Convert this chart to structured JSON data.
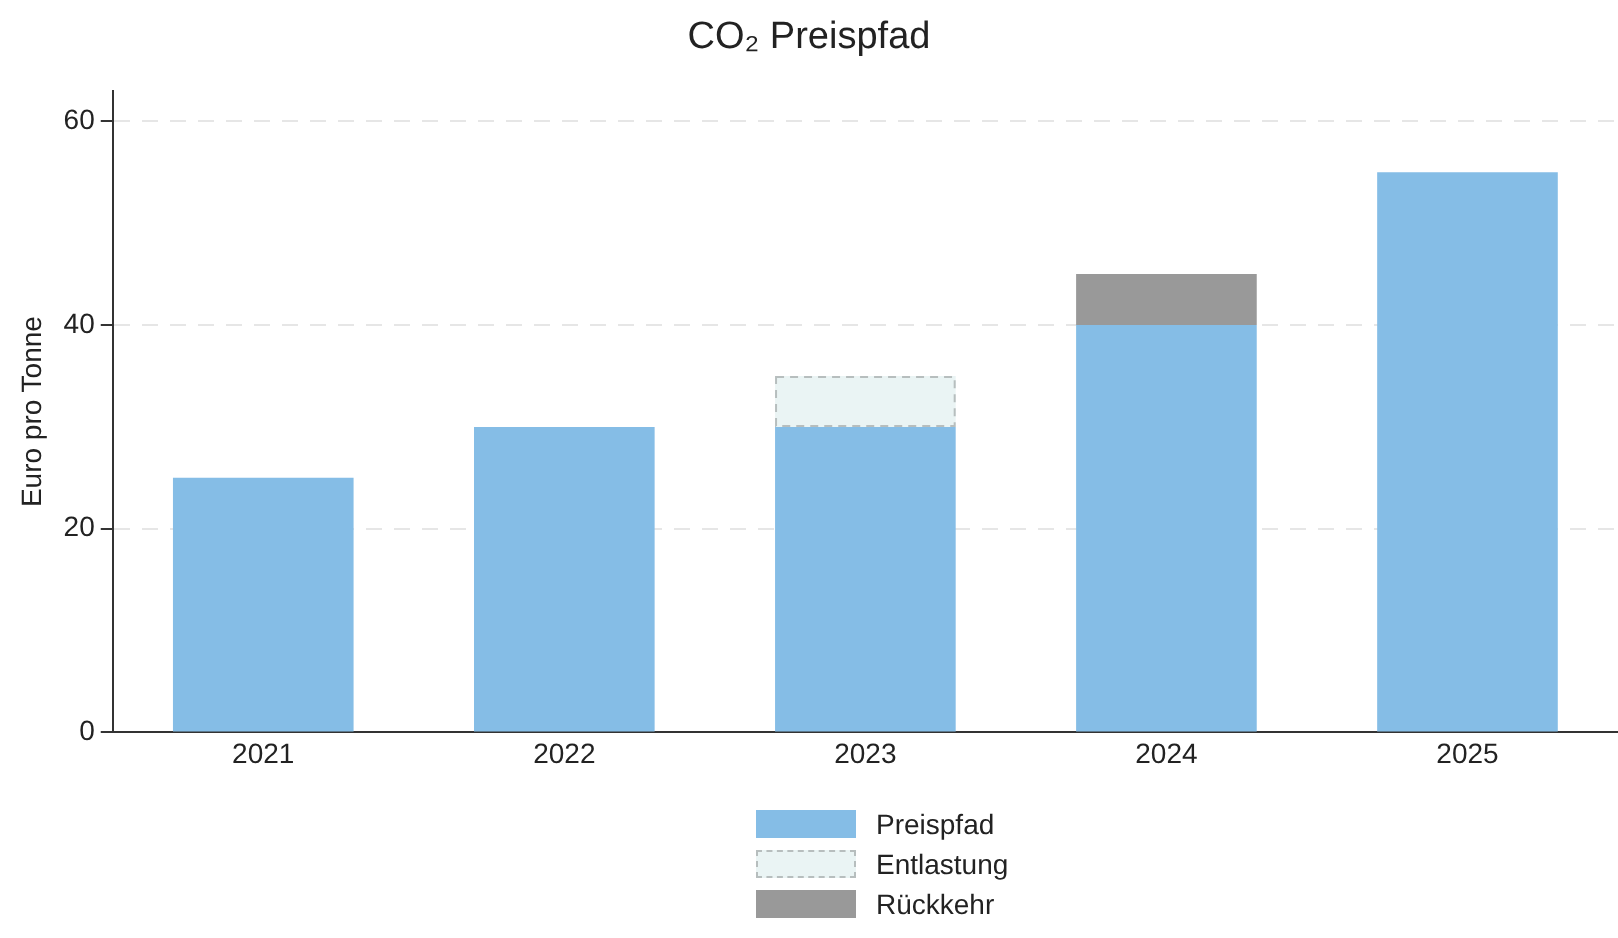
{
  "chart_data": {
    "type": "bar",
    "title": "CO₂ Preispfad",
    "ylabel": "Euro pro Tonne",
    "categories": [
      "2021",
      "2022",
      "2023",
      "2024",
      "2025"
    ],
    "stacked": true,
    "series": [
      {
        "name": "Preispfad",
        "color": "#85bde6",
        "values": [
          25,
          30,
          30,
          40,
          55
        ]
      },
      {
        "name": "Entlastung",
        "color": "#eaf4f4",
        "line_style": "dashed",
        "values": [
          null,
          null,
          5,
          null,
          null
        ]
      },
      {
        "name": "Rückkehr",
        "color": "#999999",
        "values": [
          null,
          null,
          null,
          5,
          null
        ]
      }
    ],
    "ylim": [
      0,
      63
    ],
    "yticks": [
      0,
      20,
      40,
      60
    ],
    "grid": "y",
    "legend": "bottom"
  }
}
